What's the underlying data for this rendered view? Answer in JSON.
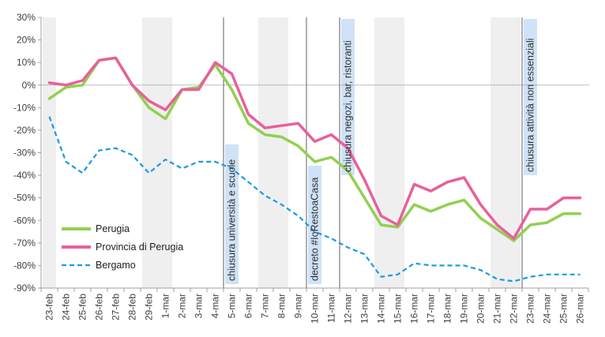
{
  "chart_data": {
    "type": "line",
    "categories": [
      "23-feb",
      "24-feb",
      "25-feb",
      "26-feb",
      "27-feb",
      "28-feb",
      "29-feb",
      "1-mar",
      "2-mar",
      "3-mar",
      "4-mar",
      "5-mar",
      "6-mar",
      "7-mar",
      "8-mar",
      "9-mar",
      "10-mar",
      "11-mar",
      "12-mar",
      "13-mar",
      "14-mar",
      "15-mar",
      "16-mar",
      "17-mar",
      "18-mar",
      "19-mar",
      "20-mar",
      "21-mar",
      "22-mar",
      "23-mar",
      "24-mar",
      "25-mar",
      "26-mar"
    ],
    "ylim": [
      -90,
      30
    ],
    "yticks": [
      30,
      20,
      10,
      0,
      -10,
      -20,
      -30,
      -40,
      -50,
      -60,
      -70,
      -80,
      -90
    ],
    "ytick_labels": [
      "30%",
      "20%",
      "10%",
      "0%",
      "-10%",
      "-20%",
      "-30%",
      "-40%",
      "-50%",
      "-60%",
      "-70%",
      "-80%",
      "-90%"
    ],
    "weekend_bands": [
      [
        "23-feb",
        "23-feb"
      ],
      [
        "29-feb",
        "1-mar"
      ],
      [
        "7-mar",
        "8-mar"
      ],
      [
        "14-mar",
        "15-mar"
      ],
      [
        "21-mar",
        "22-mar"
      ]
    ],
    "series": [
      {
        "name": "Perugia",
        "color": "#92d050",
        "style": "solid",
        "values": [
          -6,
          -1,
          0,
          11,
          12,
          0,
          -10,
          -15,
          -2,
          -1,
          9,
          -2,
          -17,
          -22,
          -23,
          -27,
          -34,
          -32,
          -38,
          -50,
          -62,
          -63,
          -53,
          -56,
          -53,
          -51,
          -59,
          -64,
          -69,
          -62,
          -61,
          -57,
          -57
        ]
      },
      {
        "name": "Provincia di Perugia",
        "color": "#e8609a",
        "style": "solid",
        "values": [
          1,
          0,
          2,
          11,
          12,
          0,
          -7,
          -11,
          -2,
          -2,
          10,
          5,
          -13,
          -19,
          -18,
          -17,
          -25,
          -22,
          -28,
          -42,
          -58,
          -62,
          -44,
          -47,
          -43,
          -41,
          -53,
          -62,
          -68,
          -55,
          -55,
          -50,
          -50
        ]
      },
      {
        "name": "Bergamo",
        "color": "#1a9be0",
        "style": "dashed",
        "values": [
          -14,
          -34,
          -39,
          -29,
          -28,
          -31,
          -39,
          -33,
          -37,
          -34,
          -34,
          -37,
          -43,
          -49,
          -53,
          -58,
          -65,
          -68,
          -72,
          -75,
          -85,
          -84,
          -79,
          -80,
          -80,
          -80,
          -82,
          -86,
          -87,
          -85,
          -84,
          -84,
          -84
        ]
      }
    ],
    "annotations": [
      {
        "at": "4-mar",
        "text": "chiusura università  e scuole"
      },
      {
        "at": "9-mar",
        "text": "decreto #IoRestoaCasa"
      },
      {
        "at": "11-mar",
        "text": "chiusura negozi, bar, ristoranti"
      },
      {
        "at": "22-mar",
        "text": "chiusura attività non essenziali"
      }
    ],
    "legend_position": "bottom-left",
    "colors": {
      "weekend": "#efefef",
      "annotation_box": "#cfe2f7",
      "zero_line": "#7f7f7f",
      "axis": "#a0a0a0",
      "event_line": "#606060"
    }
  }
}
